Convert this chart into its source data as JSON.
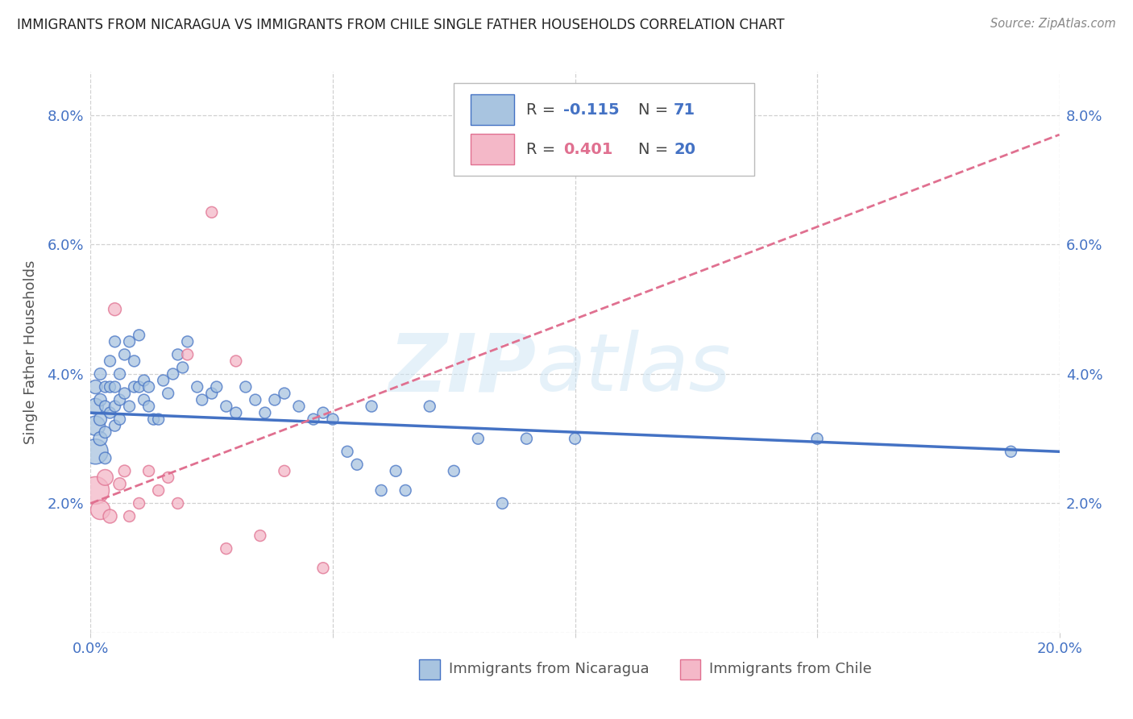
{
  "title": "IMMIGRANTS FROM NICARAGUA VS IMMIGRANTS FROM CHILE SINGLE FATHER HOUSEHOLDS CORRELATION CHART",
  "source": "Source: ZipAtlas.com",
  "ylabel": "Single Father Households",
  "legend_label_1": "Immigrants from Nicaragua",
  "legend_label_2": "Immigrants from Chile",
  "legend_r1": "R = -0.115",
  "legend_n1": "N = 71",
  "legend_r2": "R = 0.401",
  "legend_n2": "N = 20",
  "xlim": [
    0.0,
    0.2
  ],
  "ylim": [
    0.0,
    0.0867
  ],
  "yticks": [
    0.0,
    0.02,
    0.04,
    0.06,
    0.08
  ],
  "xticks": [
    0.0,
    0.05,
    0.1,
    0.15,
    0.2
  ],
  "xtick_labels_bottom": [
    "0.0%",
    "",
    "",
    "",
    "20.0%"
  ],
  "ytick_labels_left": [
    "",
    "2.0%",
    "4.0%",
    "6.0%",
    "8.0%"
  ],
  "ytick_labels_right": [
    "",
    "2.0%",
    "4.0%",
    "6.0%",
    "8.0%"
  ],
  "color_nicaragua": "#a8c4e0",
  "color_chile": "#f4b8c8",
  "color_trendline_nicaragua": "#4472c4",
  "color_trendline_chile": "#e07090",
  "color_tick": "#4472c4",
  "background_color": "#ffffff",
  "grid_color": "#cccccc",
  "nicaragua_trendline_x": [
    0.0,
    0.2
  ],
  "nicaragua_trendline_y": [
    0.034,
    0.028
  ],
  "chile_trendline_x": [
    0.0,
    0.2
  ],
  "chile_trendline_y": [
    0.02,
    0.077
  ],
  "nic_x": [
    0.001,
    0.001,
    0.001,
    0.001,
    0.002,
    0.002,
    0.002,
    0.002,
    0.003,
    0.003,
    0.003,
    0.003,
    0.004,
    0.004,
    0.004,
    0.005,
    0.005,
    0.005,
    0.005,
    0.006,
    0.006,
    0.006,
    0.007,
    0.007,
    0.008,
    0.008,
    0.009,
    0.009,
    0.01,
    0.01,
    0.011,
    0.011,
    0.012,
    0.012,
    0.013,
    0.014,
    0.015,
    0.016,
    0.017,
    0.018,
    0.019,
    0.02,
    0.022,
    0.023,
    0.025,
    0.026,
    0.028,
    0.03,
    0.032,
    0.034,
    0.036,
    0.038,
    0.04,
    0.043,
    0.046,
    0.048,
    0.05,
    0.053,
    0.055,
    0.058,
    0.06,
    0.063,
    0.065,
    0.07,
    0.075,
    0.08,
    0.085,
    0.09,
    0.1,
    0.15,
    0.19
  ],
  "nic_y": [
    0.028,
    0.032,
    0.035,
    0.038,
    0.03,
    0.033,
    0.036,
    0.04,
    0.027,
    0.031,
    0.035,
    0.038,
    0.034,
    0.038,
    0.042,
    0.032,
    0.035,
    0.038,
    0.045,
    0.033,
    0.036,
    0.04,
    0.037,
    0.043,
    0.035,
    0.045,
    0.038,
    0.042,
    0.038,
    0.046,
    0.036,
    0.039,
    0.035,
    0.038,
    0.033,
    0.033,
    0.039,
    0.037,
    0.04,
    0.043,
    0.041,
    0.045,
    0.038,
    0.036,
    0.037,
    0.038,
    0.035,
    0.034,
    0.038,
    0.036,
    0.034,
    0.036,
    0.037,
    0.035,
    0.033,
    0.034,
    0.033,
    0.028,
    0.026,
    0.035,
    0.022,
    0.025,
    0.022,
    0.035,
    0.025,
    0.03,
    0.02,
    0.03,
    0.03,
    0.03,
    0.028
  ],
  "nic_sizes": [
    500,
    300,
    200,
    150,
    150,
    130,
    120,
    110,
    110,
    110,
    100,
    100,
    100,
    100,
    100,
    100,
    100,
    100,
    100,
    100,
    100,
    100,
    100,
    100,
    100,
    100,
    100,
    100,
    100,
    100,
    100,
    100,
    100,
    100,
    100,
    100,
    100,
    100,
    100,
    100,
    100,
    100,
    100,
    100,
    100,
    100,
    100,
    100,
    100,
    100,
    100,
    100,
    100,
    100,
    100,
    100,
    100,
    100,
    100,
    100,
    100,
    100,
    100,
    100,
    100,
    100,
    100,
    100,
    100,
    100,
    100
  ],
  "chile_x": [
    0.001,
    0.002,
    0.003,
    0.004,
    0.005,
    0.006,
    0.007,
    0.008,
    0.01,
    0.012,
    0.014,
    0.016,
    0.018,
    0.02,
    0.025,
    0.028,
    0.03,
    0.035,
    0.04,
    0.048
  ],
  "chile_y": [
    0.022,
    0.019,
    0.024,
    0.018,
    0.05,
    0.023,
    0.025,
    0.018,
    0.02,
    0.025,
    0.022,
    0.024,
    0.02,
    0.043,
    0.065,
    0.013,
    0.042,
    0.015,
    0.025,
    0.01
  ],
  "chile_sizes": [
    600,
    300,
    200,
    150,
    130,
    120,
    110,
    100,
    100,
    100,
    100,
    100,
    100,
    100,
    100,
    100,
    100,
    100,
    100,
    100
  ]
}
